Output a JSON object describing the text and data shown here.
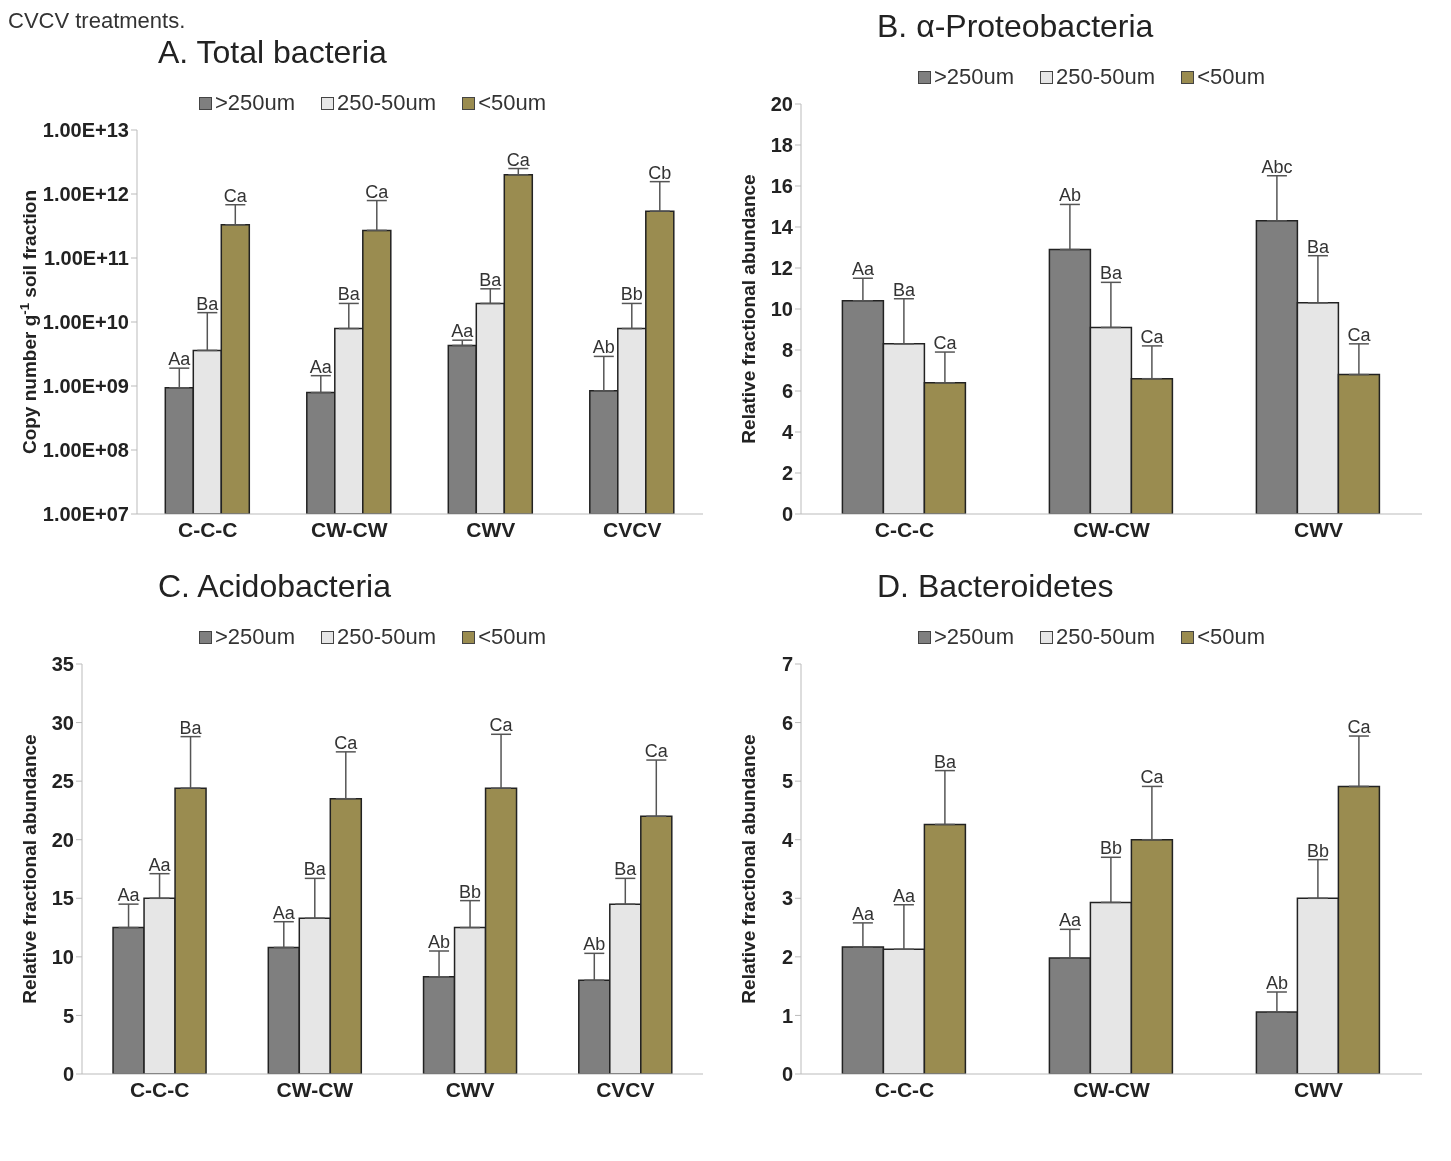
{
  "chart_data": [
    {
      "type": "bar",
      "title": "A. Total bacteria",
      "ylabel": "Copy number g$^{-1}$ soil fraction",
      "annotations": [
        "CVCV treatments."
      ],
      "categories": [
        "C-C-C",
        "CW-CW",
        "CWV",
        "CVCV"
      ],
      "log": true,
      "legend": "top",
      "ylim": [
        10000000,
        10000000000000
      ],
      "yticks": [
        {
          "value": 10000000,
          "label": "1.00E+07"
        },
        {
          "value": 100000000,
          "label": "1.00E+08"
        },
        {
          "value": 1000000000,
          "label": "1.00E+09"
        },
        {
          "value": 10000000000,
          "label": "1.00E+10"
        },
        {
          "value": 100000000000,
          "label": "1.00E+11"
        },
        {
          "value": 1000000000000,
          "label": "1.00E+12"
        },
        {
          "value": 10000000000000,
          "label": "1.00E+13"
        }
      ],
      "series": [
        {
          "name": ">250um",
          "color": "#7f7f7f",
          "values": [
            940000000,
            790000000,
            4300000000,
            840000000
          ],
          "errors": [
            [
              940000000,
              1900000000
            ],
            [
              790000000,
              1450000000
            ],
            [
              4300000000,
              5200000000
            ],
            [
              840000000,
              2900000000
            ]
          ],
          "value_labels": [
            "Aa",
            "Aa",
            "Aa",
            "Ab"
          ]
        },
        {
          "name": "250-50um",
          "color": "#e6e6e6",
          "values": [
            3600000000,
            7900000000,
            19500000000,
            7900000000
          ],
          "errors": [
            [
              3600000000,
              14000000000
            ],
            [
              7900000000,
              19500000000
            ],
            [
              19500000000,
              33000000000
            ],
            [
              7900000000,
              19500000000
            ]
          ],
          "value_labels": [
            "Ba",
            "Ba",
            "Ba",
            "Bb"
          ]
        },
        {
          "name": "<50um",
          "color": "#9a8c50",
          "values": [
            330000000000,
            270000000000,
            2000000000000,
            540000000000
          ],
          "errors": [
            [
              330000000000,
              680000000000
            ],
            [
              270000000000,
              790000000000
            ],
            [
              2000000000000,
              2500000000000
            ],
            [
              540000000000,
              1560000000000
            ]
          ],
          "value_labels": [
            "Ca",
            "Ca",
            "Ca",
            "Cb"
          ]
        }
      ]
    },
    {
      "type": "bar",
      "title": "B. α-Proteobacteria",
      "ylabel": "Relative fractional abundance",
      "categories": [
        "C-C-C",
        "CW-CW",
        "CWV"
      ],
      "legend": "top",
      "ylim": [
        0,
        20
      ],
      "yticks": [
        0,
        2,
        4,
        6,
        8,
        10,
        12,
        14,
        16,
        18,
        20
      ],
      "series": [
        {
          "name": ">250um",
          "color": "#7f7f7f",
          "values": [
            10.4,
            12.9,
            14.3
          ],
          "errors": [
            [
              10.4,
              11.5
            ],
            [
              12.9,
              15.1
            ],
            [
              14.3,
              16.5
            ]
          ],
          "value_labels": [
            "Aa",
            "Ab",
            "Abc"
          ]
        },
        {
          "name": "250-50um",
          "color": "#e6e6e6",
          "values": [
            8.3,
            9.1,
            10.3
          ],
          "errors": [
            [
              8.3,
              10.5
            ],
            [
              9.1,
              11.3
            ],
            [
              10.3,
              12.6
            ]
          ],
          "value_labels": [
            "Ba",
            "Ba",
            "Ba"
          ]
        },
        {
          "name": "<50um",
          "color": "#9a8c50",
          "values": [
            6.4,
            6.6,
            6.8
          ],
          "errors": [
            [
              6.4,
              7.9
            ],
            [
              6.6,
              8.2
            ],
            [
              6.8,
              8.3
            ]
          ],
          "value_labels": [
            "Ca",
            "Ca",
            "Ca"
          ]
        }
      ]
    },
    {
      "type": "bar",
      "title": "C. Acidobacteria",
      "ylabel": "Relative fractional abundance",
      "categories": [
        "C-C-C",
        "CW-CW",
        "CWV",
        "CVCV"
      ],
      "legend": "top",
      "ylim": [
        0,
        35
      ],
      "yticks": [
        0,
        5,
        10,
        15,
        20,
        25,
        30,
        35
      ],
      "series": [
        {
          "name": ">250um",
          "color": "#7f7f7f",
          "values": [
            12.5,
            10.8,
            8.3,
            8.0
          ],
          "errors": [
            [
              12.5,
              14.5
            ],
            [
              10.8,
              13.0
            ],
            [
              8.3,
              10.5
            ],
            [
              8.0,
              10.3
            ]
          ],
          "value_labels": [
            "Aa",
            "Aa",
            "Ab",
            "Ab"
          ]
        },
        {
          "name": "250-50um",
          "color": "#e6e6e6",
          "values": [
            15.0,
            13.3,
            12.5,
            14.5
          ],
          "errors": [
            [
              15.0,
              17.1
            ],
            [
              13.3,
              16.7
            ],
            [
              12.5,
              14.8
            ],
            [
              14.5,
              16.7
            ]
          ],
          "value_labels": [
            "Aa",
            "Ba",
            "Bb",
            "Ba"
          ]
        },
        {
          "name": "<50um",
          "color": "#9a8c50",
          "values": [
            24.4,
            23.5,
            24.4,
            22.0
          ],
          "errors": [
            [
              24.4,
              28.8
            ],
            [
              23.5,
              27.5
            ],
            [
              24.4,
              29.0
            ],
            [
              22.0,
              26.8
            ]
          ],
          "value_labels": [
            "Ba",
            "Ca",
            "Ca",
            "Ca"
          ]
        }
      ]
    },
    {
      "type": "bar",
      "title": "D. Bacteroidetes",
      "ylabel": "Relative fractional abundance",
      "categories": [
        "C-C-C",
        "CW-CW",
        "CWV"
      ],
      "legend": "top",
      "ylim": [
        0,
        7
      ],
      "yticks": [
        0,
        1,
        2,
        3,
        4,
        5,
        6,
        7
      ],
      "series": [
        {
          "name": ">250um",
          "color": "#7f7f7f",
          "values": [
            2.17,
            1.98,
            1.06
          ],
          "errors": [
            [
              2.17,
              2.58
            ],
            [
              1.98,
              2.47
            ],
            [
              1.06,
              1.4
            ]
          ],
          "value_labels": [
            "Aa",
            "Aa",
            "Ab"
          ]
        },
        {
          "name": "250-50um",
          "color": "#e6e6e6",
          "values": [
            2.13,
            2.93,
            3.0
          ],
          "errors": [
            [
              2.13,
              2.89
            ],
            [
              2.93,
              3.7
            ],
            [
              3.0,
              3.66
            ]
          ],
          "value_labels": [
            "Aa",
            "Bb",
            "Bb"
          ]
        },
        {
          "name": "<50um",
          "color": "#9a8c50",
          "values": [
            4.26,
            4.0,
            4.91
          ],
          "errors": [
            [
              4.26,
              5.18
            ],
            [
              4.0,
              4.91
            ],
            [
              4.91,
              5.77
            ]
          ],
          "value_labels": [
            "Ba",
            "Ca",
            "Ca"
          ]
        }
      ]
    }
  ]
}
